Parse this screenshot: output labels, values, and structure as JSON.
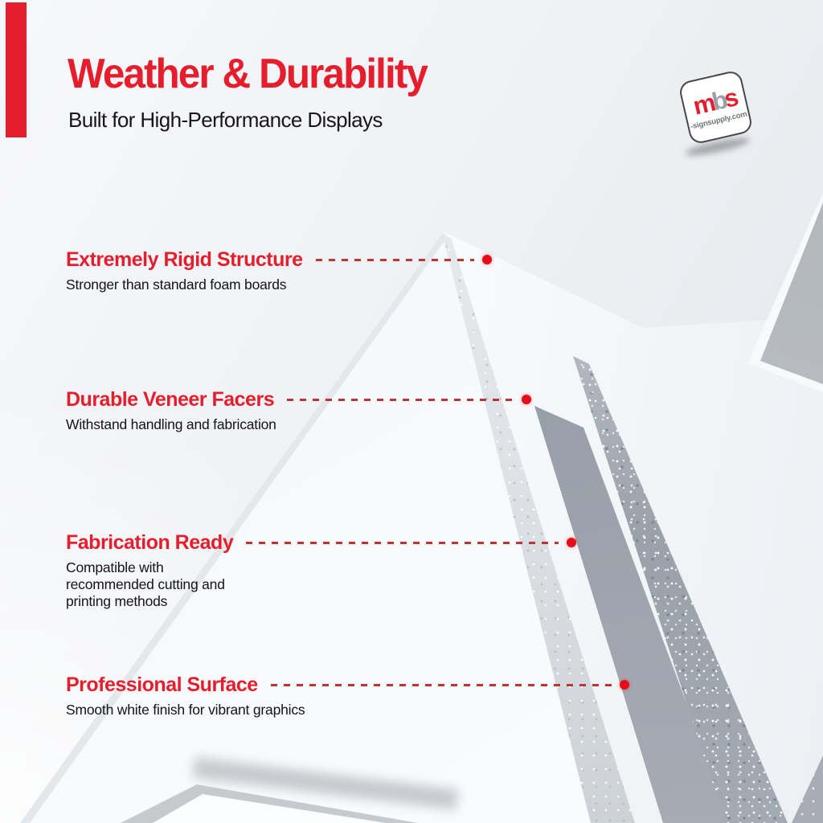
{
  "header": {
    "title": "Weather & Durability",
    "subtitle": "Built for High-Performance Displays"
  },
  "logo": {
    "m": "m",
    "b": "b",
    "s": "s",
    "domain": "-signsupply.com"
  },
  "features": [
    {
      "heading": "Extremely Rigid Structure",
      "body": "Stronger than standard foam boards"
    },
    {
      "heading": "Durable Veneer Facers",
      "body": "Withstand handling and fabrication"
    },
    {
      "heading": "Fabrication Ready",
      "body": "Compatible with recommended cutting and printing methods"
    },
    {
      "heading": "Professional Surface",
      "body": "Smooth white finish for vibrant graphics"
    }
  ],
  "colors": {
    "accent_red": "#e41e2d",
    "dash_red": "#bc3534",
    "dot_red": "#e60d1a",
    "text_dark": "#17171a",
    "logo_gray": "#9aa0a6"
  }
}
